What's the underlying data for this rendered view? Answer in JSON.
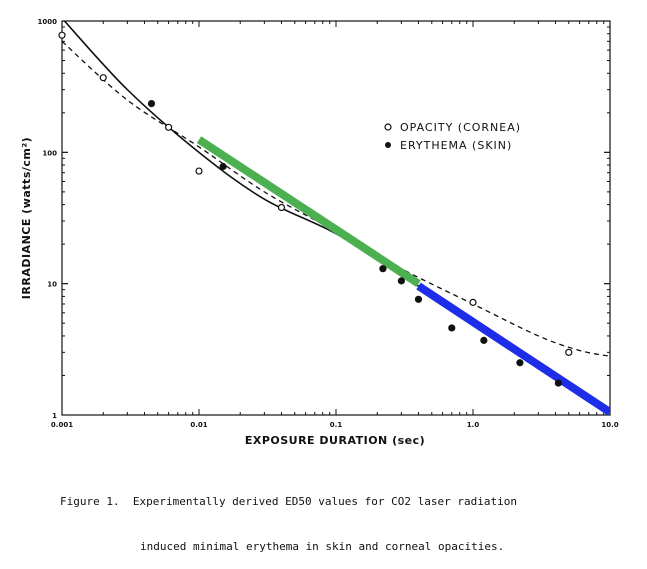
{
  "chart_data": {
    "type": "scatter",
    "xlabel": "EXPOSURE DURATION (sec)",
    "ylabel": "IRRADIANCE (watts/cm²)",
    "xscale": "log",
    "yscale": "log",
    "xlim": [
      0.001,
      10.0
    ],
    "ylim": [
      1,
      1000
    ],
    "x_tick_labels": [
      "0.001",
      "0.01",
      "0.1",
      "1.0",
      "10.0"
    ],
    "y_tick_labels": [
      "1",
      "10",
      "100",
      "1000"
    ],
    "legend": {
      "placement": "center-right",
      "entries": [
        {
          "label": "OPACITY (CORNEA)",
          "marker": "open-circle"
        },
        {
          "label": "ERYTHEMA (SKIN)",
          "marker": "filled-circle"
        }
      ]
    },
    "series": [
      {
        "name": "OPACITY (CORNEA)",
        "marker": "open-circle",
        "points": [
          [
            0.001,
            780
          ],
          [
            0.002,
            370
          ],
          [
            0.006,
            155
          ],
          [
            0.01,
            72
          ],
          [
            0.04,
            38
          ],
          [
            1.0,
            7.2
          ],
          [
            5.0,
            3.0
          ]
        ]
      },
      {
        "name": "ERYTHEMA (SKIN)",
        "marker": "filled-circle",
        "points": [
          [
            0.0045,
            235
          ],
          [
            0.015,
            78
          ],
          [
            0.22,
            13
          ],
          [
            0.3,
            10.5
          ],
          [
            0.4,
            7.6
          ],
          [
            0.7,
            4.6
          ],
          [
            1.2,
            3.7
          ],
          [
            2.2,
            2.5
          ],
          [
            4.2,
            1.75
          ]
        ]
      }
    ],
    "curves": [
      {
        "style": "solid-black",
        "points": [
          [
            0.001,
            1050
          ],
          [
            0.003,
            300
          ],
          [
            0.01,
            100
          ],
          [
            0.03,
            44
          ],
          [
            0.1,
            24
          ],
          [
            0.3,
            11.5
          ],
          [
            1.0,
            5.4
          ],
          [
            3.0,
            2.5
          ],
          [
            10.0,
            1.05
          ]
        ]
      },
      {
        "style": "dashed-black",
        "points": [
          [
            0.001,
            700
          ],
          [
            0.003,
            250
          ],
          [
            0.01,
            110
          ],
          [
            0.03,
            50
          ],
          [
            0.1,
            25
          ],
          [
            0.3,
            13
          ],
          [
            1.0,
            7.0
          ],
          [
            3.0,
            4.0
          ],
          [
            6.0,
            3.1
          ],
          [
            10.0,
            2.8
          ]
        ]
      },
      {
        "style": "thick-green",
        "color": "#4caf50",
        "points": [
          [
            0.01,
            125
          ],
          [
            0.4,
            10
          ]
        ]
      },
      {
        "style": "thick-blue",
        "color": "#1e2ee8",
        "points": [
          [
            0.4,
            9.6
          ],
          [
            10.0,
            1.05
          ]
        ]
      }
    ],
    "grid": false
  },
  "caption": {
    "line1": "Figure 1.  Experimentally derived ED50 values for CO2 laser radiation",
    "line2": "induced minimal erythema in skin and corneal opacities."
  }
}
